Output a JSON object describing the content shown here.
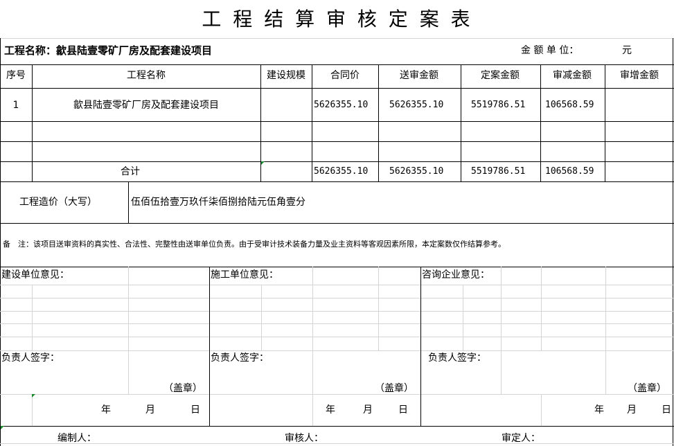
{
  "title": "工 程 结 算 审 核 定 案 表",
  "project_label": "工程名称：歙县陆壹零矿厂房及配套建设项目",
  "unit_label": "金 额 单 位：",
  "unit_value": "元",
  "table": {
    "headers": [
      "序号",
      "工程名称",
      "建设规模",
      "合同价",
      "送审金额",
      "定案金额",
      "审减金额",
      "审增金额"
    ],
    "rows": [
      [
        "1",
        "歙县陆壹零矿厂房及配套建设项目",
        "",
        "5626355.10",
        "5626355.10",
        "5519786.51",
        "106568.59",
        ""
      ]
    ],
    "total": {
      "label": "合计",
      "contract": "5626355.10",
      "submitted": "5626355.10",
      "approved": "5519786.51",
      "reduced": "106568.59",
      "increased": ""
    }
  },
  "cost_words": {
    "label": "工程造价（大写）",
    "value": "伍佰伍拾壹万玖仟柒佰捌拾陆元伍角壹分"
  },
  "note": "备　注：该项目送审资料的真实性、合法性、完整性由送审单位负责。由于受审计技术装备力量及业主资料等客观因素所限，本定案数仅作结算参考。",
  "opinions": [
    {
      "title": "建设单位意见：",
      "sign": "负责人签字：",
      "seal": "（盖章）",
      "year": "年",
      "month": "月",
      "day": "日"
    },
    {
      "title": "施工单位意见：",
      "sign": "负责人签字：",
      "seal": "（盖章）",
      "year": "年",
      "month": "月",
      "day": "日"
    },
    {
      "title": "咨询企业意见：",
      "sign": "负责人签字：",
      "seal": "（盖章）",
      "year": "年",
      "month": "月",
      "day": "日"
    }
  ],
  "footer": {
    "compiler": "编制人：",
    "reviewer": "审核人：",
    "approver": "审定人："
  }
}
